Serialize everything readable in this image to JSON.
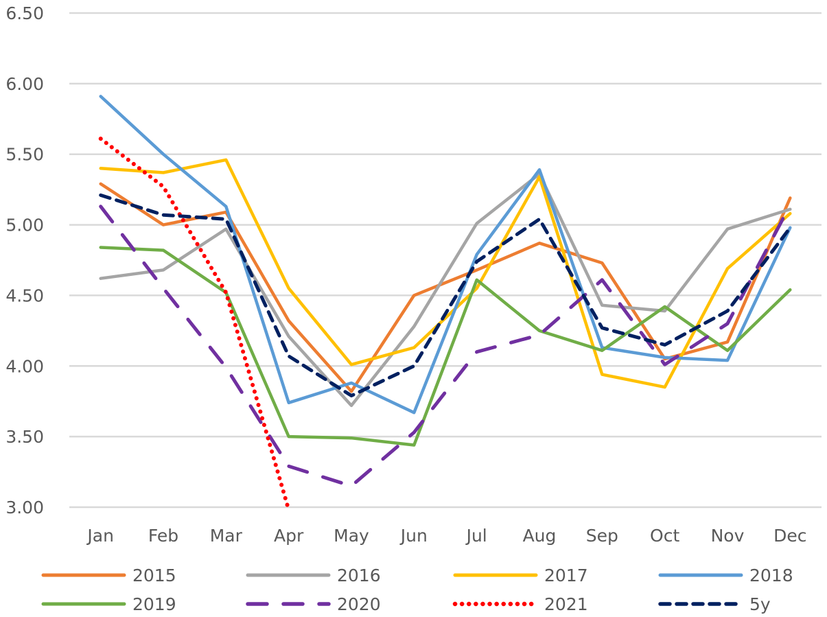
{
  "chart_data": {
    "type": "line",
    "title": "",
    "xlabel": "",
    "ylabel": "",
    "categories": [
      "Jan",
      "Feb",
      "Mar",
      "Apr",
      "May",
      "Jun",
      "Jul",
      "Aug",
      "Sep",
      "Oct",
      "Nov",
      "Dec"
    ],
    "ylim": [
      3.0,
      6.5
    ],
    "yticks": [
      "3.00",
      "3.50",
      "4.00",
      "4.50",
      "5.00",
      "5.50",
      "6.00",
      "6.50"
    ],
    "ytick_values": [
      3.0,
      3.5,
      4.0,
      4.5,
      5.0,
      5.5,
      6.0,
      6.5
    ],
    "grid": true,
    "legend_position": "bottom",
    "series": [
      {
        "name": "2015",
        "color": "#ed7d31",
        "dash": "solid",
        "values": [
          5.29,
          5.0,
          5.09,
          4.32,
          3.82,
          4.5,
          4.68,
          4.87,
          4.73,
          4.05,
          4.17,
          5.19
        ]
      },
      {
        "name": "2016",
        "color": "#a5a5a5",
        "dash": "solid",
        "values": [
          4.62,
          4.68,
          4.97,
          4.21,
          3.72,
          4.28,
          5.01,
          5.36,
          4.43,
          4.39,
          4.97,
          5.11
        ]
      },
      {
        "name": "2017",
        "color": "#ffc000",
        "dash": "solid",
        "values": [
          5.4,
          5.37,
          5.46,
          4.55,
          4.01,
          4.13,
          4.55,
          5.34,
          3.94,
          3.85,
          4.69,
          5.08
        ]
      },
      {
        "name": "2018",
        "color": "#5b9bd5",
        "dash": "solid",
        "values": [
          5.91,
          5.5,
          5.13,
          3.74,
          3.88,
          3.67,
          4.79,
          5.39,
          4.13,
          4.06,
          4.04,
          4.98
        ]
      },
      {
        "name": "2019",
        "color": "#70ad47",
        "dash": "solid",
        "values": [
          4.84,
          4.82,
          4.52,
          3.5,
          3.49,
          3.44,
          4.61,
          4.25,
          4.11,
          4.42,
          4.11,
          4.54
        ]
      },
      {
        "name": "2020",
        "color": "#7030a0",
        "dash": "longdash",
        "values": [
          5.13,
          4.55,
          3.99,
          3.29,
          3.15,
          3.53,
          4.1,
          4.22,
          4.61,
          4.01,
          4.3,
          5.14
        ]
      },
      {
        "name": "2021",
        "color": "#ff0000",
        "dash": "dot",
        "values": [
          5.61,
          5.27,
          4.52,
          2.98,
          null,
          null,
          null,
          null,
          null,
          null,
          null,
          null
        ]
      },
      {
        "name": "5y",
        "color": "#002060",
        "dash": "dash",
        "values": [
          5.21,
          5.07,
          5.04,
          4.07,
          3.79,
          4.0,
          4.74,
          5.04,
          4.27,
          4.15,
          4.39,
          4.98
        ]
      }
    ]
  }
}
